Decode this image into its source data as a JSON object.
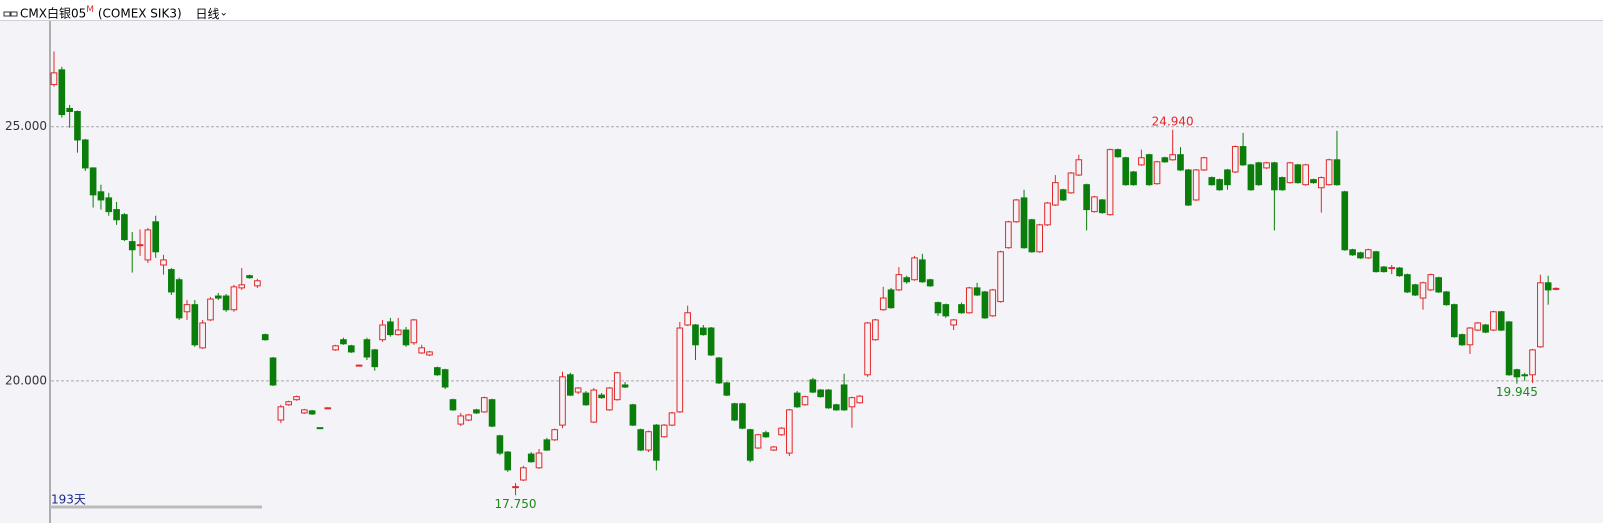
{
  "header": {
    "symbol": "CMX白银05",
    "flag": "M",
    "code": "(COMEX SIK3)",
    "period": "日线"
  },
  "chart_data": {
    "type": "candlestick",
    "up_color": "#e02828",
    "down_color": "#0a7d0a",
    "ylim": [
      17.46,
      27.1
    ],
    "yticks": [
      {
        "value": 20,
        "label": "20.000"
      },
      {
        "value": 25,
        "label": "25.000"
      }
    ],
    "grid": true,
    "count_label": "193天",
    "annotations": [
      {
        "value": 24.94,
        "label": "24.940",
        "color": "#e02828",
        "at": "high"
      },
      {
        "value": 17.75,
        "label": "17.750",
        "color": "#1a8a1a",
        "at": "low"
      },
      {
        "value": 19.945,
        "label": "19.945",
        "color": "#1a8a1a",
        "at": "low"
      }
    ],
    "ohlc": [
      [
        25.83,
        26.48,
        25.79,
        26.06
      ],
      [
        26.12,
        26.18,
        25.18,
        25.24
      ],
      [
        25.36,
        25.43,
        24.98,
        25.3
      ],
      [
        25.3,
        25.32,
        24.49,
        24.74
      ],
      [
        24.74,
        24.76,
        24.13,
        24.19
      ],
      [
        24.19,
        24.2,
        23.41,
        23.66
      ],
      [
        23.72,
        23.86,
        23.37,
        23.56
      ],
      [
        23.6,
        23.7,
        23.25,
        23.33
      ],
      [
        23.37,
        23.52,
        23.07,
        23.17
      ],
      [
        23.27,
        23.3,
        22.75,
        22.78
      ],
      [
        22.74,
        22.93,
        22.13,
        22.58
      ],
      [
        22.66,
        22.98,
        22.46,
        22.68
      ],
      [
        22.38,
        23.01,
        22.32,
        22.97
      ],
      [
        23.13,
        23.25,
        22.42,
        22.54
      ],
      [
        22.28,
        22.48,
        22.09,
        22.38
      ],
      [
        22.19,
        22.22,
        21.69,
        21.75
      ],
      [
        21.99,
        22.03,
        21.2,
        21.24
      ],
      [
        21.36,
        21.59,
        21.2,
        21.5
      ],
      [
        21.5,
        21.59,
        20.67,
        20.71
      ],
      [
        20.65,
        21.2,
        20.63,
        21.14
      ],
      [
        21.2,
        21.65,
        21.18,
        21.61
      ],
      [
        21.67,
        21.73,
        21.59,
        21.63
      ],
      [
        21.67,
        21.71,
        21.36,
        21.4
      ],
      [
        21.4,
        21.89,
        21.36,
        21.85
      ],
      [
        21.83,
        22.22,
        21.79,
        21.89
      ],
      [
        22.07,
        22.09,
        22.01,
        22.03
      ],
      [
        21.87,
        22.01,
        21.83,
        21.97
      ],
      [
        20.91,
        20.93,
        20.79,
        20.81
      ],
      [
        20.45,
        20.47,
        19.9,
        19.92
      ],
      [
        19.23,
        19.53,
        19.17,
        19.49
      ],
      [
        19.53,
        19.61,
        19.51,
        19.59
      ],
      [
        19.63,
        19.71,
        19.61,
        19.69
      ],
      [
        19.37,
        19.45,
        19.35,
        19.43
      ],
      [
        19.41,
        19.43,
        19.33,
        19.35
      ],
      [
        19.08,
        19.08,
        19.07,
        19.07
      ],
      [
        19.47,
        19.48,
        19.46,
        19.47
      ],
      [
        20.61,
        20.71,
        20.59,
        20.69
      ],
      [
        20.81,
        20.85,
        20.71,
        20.73
      ],
      [
        20.69,
        20.71,
        20.55,
        20.57
      ],
      [
        20.31,
        20.32,
        20.3,
        20.31
      ],
      [
        20.81,
        20.85,
        20.41,
        20.47
      ],
      [
        20.61,
        20.63,
        20.2,
        20.28
      ],
      [
        20.81,
        21.2,
        20.77,
        21.1
      ],
      [
        21.16,
        21.24,
        20.87,
        20.91
      ],
      [
        20.91,
        21.24,
        20.89,
        21.0
      ],
      [
        21.0,
        21.06,
        20.67,
        20.71
      ],
      [
        20.75,
        21.22,
        20.71,
        21.2
      ],
      [
        20.55,
        20.71,
        20.53,
        20.65
      ],
      [
        20.51,
        20.59,
        20.49,
        20.57
      ],
      [
        20.26,
        20.28,
        20.1,
        20.12
      ],
      [
        20.22,
        20.24,
        19.84,
        19.88
      ],
      [
        19.63,
        19.65,
        19.41,
        19.43
      ],
      [
        19.15,
        19.37,
        19.11,
        19.31
      ],
      [
        19.23,
        19.35,
        19.21,
        19.33
      ],
      [
        19.43,
        19.45,
        19.35,
        19.37
      ],
      [
        19.39,
        19.69,
        19.37,
        19.67
      ],
      [
        19.63,
        19.65,
        19.09,
        19.11
      ],
      [
        18.92,
        18.94,
        18.54,
        18.58
      ],
      [
        18.6,
        18.62,
        18.21,
        18.25
      ],
      [
        17.9,
        17.99,
        17.75,
        17.92
      ],
      [
        18.05,
        18.33,
        18.03,
        18.29
      ],
      [
        18.56,
        18.6,
        18.39,
        18.41
      ],
      [
        18.29,
        18.66,
        18.27,
        18.58
      ],
      [
        18.84,
        18.88,
        18.62,
        18.64
      ],
      [
        18.84,
        19.06,
        18.82,
        19.04
      ],
      [
        19.13,
        20.18,
        19.07,
        20.08
      ],
      [
        20.12,
        20.16,
        19.7,
        19.72
      ],
      [
        19.78,
        19.88,
        19.74,
        19.86
      ],
      [
        19.76,
        19.8,
        19.51,
        19.53
      ],
      [
        19.19,
        19.86,
        19.17,
        19.82
      ],
      [
        19.72,
        19.76,
        19.65,
        19.67
      ],
      [
        19.43,
        19.88,
        19.41,
        19.86
      ],
      [
        19.63,
        20.18,
        19.61,
        20.16
      ],
      [
        19.92,
        19.98,
        19.86,
        19.88
      ],
      [
        19.53,
        19.55,
        19.11,
        19.13
      ],
      [
        19.04,
        19.06,
        18.62,
        18.64
      ],
      [
        18.64,
        19.02,
        18.6,
        19.0
      ],
      [
        19.13,
        19.15,
        18.24,
        18.44
      ],
      [
        18.9,
        19.15,
        18.88,
        19.13
      ],
      [
        19.13,
        19.39,
        19.11,
        19.37
      ],
      [
        19.39,
        21.16,
        19.37,
        21.04
      ],
      [
        21.1,
        21.48,
        21.08,
        21.34
      ],
      [
        21.1,
        21.12,
        20.41,
        20.71
      ],
      [
        21.04,
        21.1,
        20.89,
        20.91
      ],
      [
        21.04,
        21.06,
        20.49,
        20.51
      ],
      [
        20.45,
        20.47,
        19.94,
        19.96
      ],
      [
        19.96,
        19.98,
        19.7,
        19.72
      ],
      [
        19.55,
        19.57,
        19.21,
        19.23
      ],
      [
        19.55,
        19.57,
        19.05,
        19.07
      ],
      [
        19.04,
        19.06,
        18.4,
        18.44
      ],
      [
        18.68,
        18.96,
        18.66,
        18.94
      ],
      [
        18.98,
        19.02,
        18.88,
        18.9
      ],
      [
        18.64,
        18.72,
        18.62,
        18.7
      ],
      [
        18.94,
        19.09,
        18.92,
        19.07
      ],
      [
        18.58,
        19.45,
        18.52,
        19.43
      ],
      [
        19.76,
        19.8,
        19.47,
        19.49
      ],
      [
        19.53,
        19.71,
        19.51,
        19.69
      ],
      [
        20.02,
        20.06,
        19.76,
        19.78
      ],
      [
        19.82,
        19.84,
        19.67,
        19.69
      ],
      [
        19.82,
        19.84,
        19.45,
        19.47
      ],
      [
        19.53,
        19.55,
        19.41,
        19.43
      ],
      [
        19.92,
        20.14,
        19.41,
        19.43
      ],
      [
        19.49,
        19.69,
        19.08,
        19.67
      ],
      [
        19.57,
        19.72,
        19.55,
        19.7
      ],
      [
        20.12,
        21.16,
        20.08,
        21.14
      ],
      [
        20.81,
        21.22,
        20.79,
        21.2
      ],
      [
        21.4,
        21.85,
        21.38,
        21.63
      ],
      [
        21.79,
        21.83,
        21.42,
        21.44
      ],
      [
        21.79,
        22.24,
        21.77,
        22.09
      ],
      [
        22.03,
        22.07,
        21.91,
        21.95
      ],
      [
        21.99,
        22.46,
        21.97,
        22.42
      ],
      [
        22.38,
        22.5,
        21.93,
        21.95
      ],
      [
        21.99,
        22.01,
        21.85,
        21.87
      ],
      [
        21.54,
        21.56,
        21.28,
        21.34
      ],
      [
        21.5,
        21.52,
        21.24,
        21.28
      ],
      [
        21.1,
        21.22,
        21.0,
        21.2
      ],
      [
        21.5,
        21.54,
        21.32,
        21.34
      ],
      [
        21.34,
        21.85,
        21.32,
        21.83
      ],
      [
        21.83,
        21.93,
        21.67,
        21.69
      ],
      [
        21.75,
        21.77,
        21.22,
        21.24
      ],
      [
        21.28,
        21.81,
        21.26,
        21.79
      ],
      [
        21.56,
        22.56,
        21.54,
        22.54
      ],
      [
        22.62,
        23.15,
        22.6,
        23.13
      ],
      [
        23.13,
        23.58,
        23.11,
        23.56
      ],
      [
        23.6,
        23.76,
        22.6,
        22.62
      ],
      [
        23.17,
        23.19,
        22.52,
        22.54
      ],
      [
        22.54,
        23.09,
        22.52,
        23.07
      ],
      [
        23.07,
        23.52,
        23.05,
        23.5
      ],
      [
        23.46,
        24.05,
        23.44,
        23.9
      ],
      [
        23.76,
        23.78,
        23.54,
        23.56
      ],
      [
        23.7,
        24.11,
        23.68,
        24.09
      ],
      [
        24.05,
        24.45,
        24.03,
        24.35
      ],
      [
        23.86,
        23.88,
        22.96,
        23.37
      ],
      [
        23.33,
        23.64,
        23.31,
        23.62
      ],
      [
        23.56,
        23.58,
        23.29,
        23.31
      ],
      [
        23.27,
        24.57,
        23.25,
        24.55
      ],
      [
        24.55,
        24.57,
        24.39,
        24.41
      ],
      [
        24.39,
        24.41,
        23.84,
        23.86
      ],
      [
        24.11,
        24.13,
        23.84,
        23.86
      ],
      [
        24.25,
        24.55,
        24.23,
        24.39
      ],
      [
        24.45,
        24.47,
        23.84,
        23.86
      ],
      [
        23.88,
        24.33,
        23.86,
        24.31
      ],
      [
        24.39,
        24.41,
        24.29,
        24.31
      ],
      [
        24.35,
        24.94,
        24.33,
        24.45
      ],
      [
        24.45,
        24.6,
        24.13,
        24.15
      ],
      [
        24.15,
        24.17,
        23.44,
        23.46
      ],
      [
        23.56,
        24.17,
        23.54,
        24.15
      ],
      [
        24.15,
        24.41,
        24.13,
        24.39
      ],
      [
        24.0,
        24.02,
        23.84,
        23.86
      ],
      [
        23.96,
        23.98,
        23.74,
        23.76
      ],
      [
        24.15,
        24.17,
        23.76,
        23.86
      ],
      [
        24.11,
        24.63,
        24.09,
        24.61
      ],
      [
        24.61,
        24.88,
        24.23,
        24.25
      ],
      [
        24.25,
        24.27,
        23.74,
        23.76
      ],
      [
        24.29,
        24.31,
        23.84,
        23.86
      ],
      [
        24.19,
        24.31,
        24.17,
        24.29
      ],
      [
        24.29,
        24.31,
        22.96,
        23.76
      ],
      [
        24.0,
        24.02,
        23.74,
        23.76
      ],
      [
        23.9,
        24.31,
        23.88,
        24.29
      ],
      [
        24.25,
        24.27,
        23.88,
        23.9
      ],
      [
        23.86,
        24.27,
        23.84,
        24.25
      ],
      [
        23.96,
        23.98,
        23.88,
        23.9
      ],
      [
        23.8,
        24.02,
        23.31,
        24.0
      ],
      [
        23.86,
        24.37,
        23.84,
        24.35
      ],
      [
        24.35,
        24.92,
        23.84,
        23.86
      ],
      [
        23.72,
        23.74,
        22.56,
        22.58
      ],
      [
        22.58,
        22.6,
        22.46,
        22.48
      ],
      [
        22.52,
        22.54,
        22.4,
        22.42
      ],
      [
        22.42,
        22.6,
        22.4,
        22.58
      ],
      [
        22.54,
        22.56,
        22.13,
        22.15
      ],
      [
        22.24,
        22.26,
        22.13,
        22.15
      ],
      [
        22.22,
        22.28,
        22.1,
        22.23
      ],
      [
        22.22,
        22.24,
        22.05,
        22.07
      ],
      [
        22.09,
        22.11,
        21.73,
        21.75
      ],
      [
        21.89,
        21.91,
        21.67,
        21.69
      ],
      [
        21.63,
        21.95,
        21.4,
        21.93
      ],
      [
        21.79,
        22.11,
        21.77,
        22.09
      ],
      [
        22.03,
        22.05,
        21.73,
        21.75
      ],
      [
        21.75,
        21.77,
        21.48,
        21.5
      ],
      [
        21.5,
        21.52,
        20.85,
        20.87
      ],
      [
        20.91,
        20.93,
        20.69,
        20.71
      ],
      [
        20.71,
        21.06,
        20.53,
        21.04
      ],
      [
        21.0,
        21.16,
        20.98,
        21.14
      ],
      [
        21.1,
        21.12,
        20.94,
        20.96
      ],
      [
        21.0,
        21.38,
        20.98,
        21.36
      ],
      [
        21.36,
        21.38,
        20.98,
        21.0
      ],
      [
        21.16,
        21.18,
        20.1,
        20.12
      ],
      [
        20.22,
        20.24,
        19.945,
        20.08
      ],
      [
        20.12,
        20.16,
        20.0,
        20.11
      ],
      [
        20.12,
        20.63,
        19.96,
        20.61
      ],
      [
        20.67,
        22.09,
        20.65,
        21.93
      ],
      [
        21.93,
        22.07,
        21.5,
        21.79
      ],
      [
        21.8,
        21.84,
        21.78,
        21.82
      ]
    ]
  }
}
